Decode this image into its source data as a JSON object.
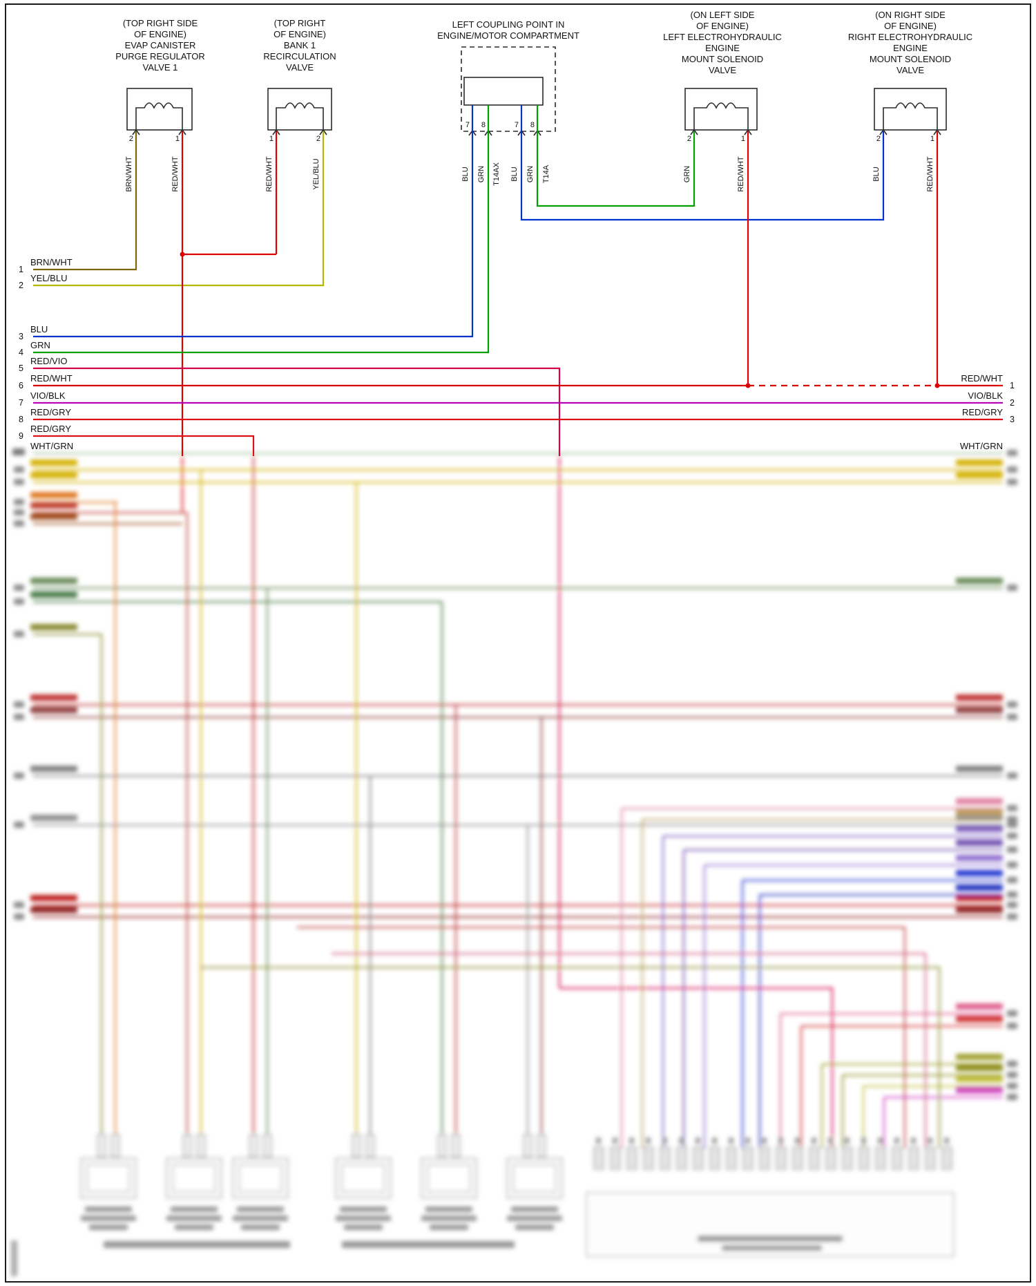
{
  "components": {
    "evap": {
      "lines": [
        "(TOP RIGHT SIDE",
        "OF ENGINE)",
        "EVAP CANISTER",
        "PURGE REGULATOR",
        "VALVE 1"
      ],
      "pins": [
        {
          "pin": "2",
          "wire": "BRN/WHT"
        },
        {
          "pin": "1",
          "wire": "RED/WHT"
        }
      ]
    },
    "recirc": {
      "lines": [
        "(TOP RIGHT",
        "OF ENGINE)",
        "BANK 1",
        "RECIRCULATION",
        "VALVE"
      ],
      "pins": [
        {
          "pin": "1",
          "wire": "RED/WHT"
        },
        {
          "pin": "2",
          "wire": "YEL/BLU"
        }
      ]
    },
    "coupling": {
      "lines": [
        "LEFT COUPLING POINT IN",
        "ENGINE/MOTOR COMPARTMENT"
      ],
      "pins": [
        {
          "pin": "7",
          "wire": "BLU"
        },
        {
          "pin": "8",
          "wire": "GRN"
        },
        {
          "pin": "7",
          "wire": "BLU"
        },
        {
          "pin": "8",
          "wire": "GRN"
        }
      ],
      "connectors": [
        "T14AX",
        "T14A"
      ]
    },
    "left_mount": {
      "lines": [
        "(ON LEFT SIDE",
        "OF ENGINE)",
        "LEFT ELECTROHYDRAULIC",
        "ENGINE",
        "MOUNT SOLENOID",
        "VALVE"
      ],
      "pins": [
        {
          "pin": "2",
          "wire": "GRN"
        },
        {
          "pin": "1",
          "wire": "RED/WHT"
        }
      ]
    },
    "right_mount": {
      "lines": [
        "(ON RIGHT SIDE",
        "OF ENGINE)",
        "RIGHT ELECTROHYDRAULIC",
        "ENGINE",
        "MOUNT SOLENOID",
        "VALVE"
      ],
      "pins": [
        {
          "pin": "2",
          "wire": "BLU"
        },
        {
          "pin": "1",
          "wire": "RED/WHT"
        }
      ]
    }
  },
  "left_rows": [
    {
      "n": "1",
      "label": "BRN/WHT"
    },
    {
      "n": "2",
      "label": "YEL/BLU"
    },
    {
      "n": "3",
      "label": "BLU"
    },
    {
      "n": "4",
      "label": "GRN"
    },
    {
      "n": "5",
      "label": "RED/VIO"
    },
    {
      "n": "6",
      "label": "RED/WHT"
    },
    {
      "n": "7",
      "label": "VIO/BLK"
    },
    {
      "n": "8",
      "label": "RED/GRY"
    },
    {
      "n": "9",
      "label": "RED/GRY"
    },
    {
      "n": "",
      "label": "WHT/GRN"
    }
  ],
  "right_rows": [
    {
      "n": "1",
      "label": "RED/WHT"
    },
    {
      "n": "2",
      "label": "VIO/BLK"
    },
    {
      "n": "3",
      "label": "RED/GRY"
    },
    {
      "n": "",
      "label": "WHT/GRN"
    }
  ],
  "wire_colors": {
    "BRN/WHT": "#7d6608",
    "YEL/BLU": "#b5b800",
    "RED/WHT": "#dd0000",
    "BLU": "#0033cc",
    "GRN": "#00a000",
    "RED/VIO": "#d4004c",
    "VIO/BLK": "#bb00bb",
    "RED/GRY": "#dd1111",
    "WHT/GRN": "#9fbf9f"
  }
}
